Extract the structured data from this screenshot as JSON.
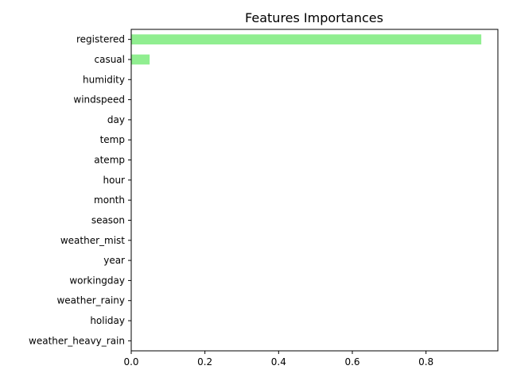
{
  "chart_data": {
    "type": "bar",
    "orientation": "horizontal",
    "title": "Features Importances",
    "xlabel": "",
    "ylabel": "",
    "categories": [
      "registered",
      "casual",
      "humidity",
      "windspeed",
      "day",
      "temp",
      "atemp",
      "hour",
      "month",
      "season",
      "weather_mist",
      "year",
      "workingday",
      "weather_rainy",
      "holiday",
      "weather_heavy_rain"
    ],
    "values": [
      0.95,
      0.05,
      0.0002,
      0.0002,
      0.0002,
      0.0001,
      0.0001,
      0.0001,
      0.0001,
      0.0001,
      0.0001,
      0.0001,
      0.0001,
      0.0001,
      0.0,
      0.0
    ],
    "xlim": [
      0,
      0.995
    ],
    "xticks": [
      0.0,
      0.2,
      0.4,
      0.6,
      0.8
    ],
    "xtick_labels": [
      "0.0",
      "0.2",
      "0.4",
      "0.6",
      "0.8"
    ],
    "bar_color": "#90ee90",
    "grid": false,
    "legend": "none"
  }
}
